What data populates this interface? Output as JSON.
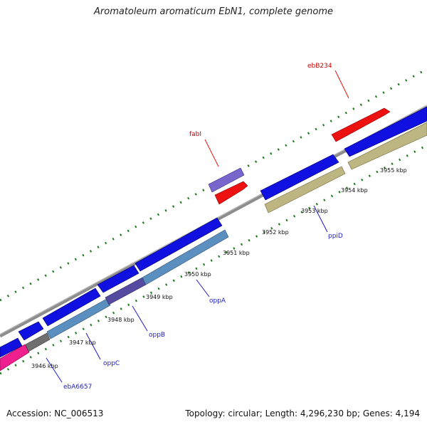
{
  "title": "Aromatoleum aromaticum EbN1, complete genome",
  "footer": {
    "accession": "Accession: NC_006513",
    "summary": "Topology: circular; Length: 4,296,230 bp; Genes: 4,194"
  },
  "colors": {
    "backbone": "#8c8c8c",
    "tick": "#1a7a1a",
    "gene_blue": "#1010e0",
    "gene_red": "#ee1111",
    "gene_purple": "#7866cc",
    "gene_steel": "#5b8fc0",
    "gene_olive": "#bdb682",
    "gene_grey": "#6f6f6f",
    "gene_pink": "#ee1f8f",
    "label_red": "#cc0000",
    "label_blue": "#1a1acc"
  },
  "scale": {
    "unit": "kbp",
    "labels": [
      "3946 kbp",
      "3947 kbp",
      "3948 kbp",
      "3949 kbp",
      "3950 kbp",
      "3951 kbp",
      "3952 kbp",
      "3953 kbp",
      "3954 kbp",
      "3955 kbp"
    ]
  },
  "gene_labels": [
    {
      "name": "ebB234",
      "color": "red"
    },
    {
      "name": "fabI",
      "color": "red"
    },
    {
      "name": "ppiD",
      "color": "blue"
    },
    {
      "name": "oppA",
      "color": "blue"
    },
    {
      "name": "oppB",
      "color": "blue"
    },
    {
      "name": "oppC",
      "color": "blue"
    },
    {
      "name": "ebA6657",
      "color": "blue"
    }
  ]
}
